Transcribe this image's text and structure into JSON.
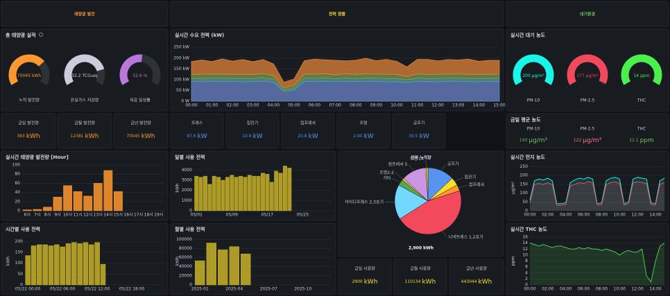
{
  "headers": [
    {
      "text": "태양광 발전",
      "color": "#ff9830"
    },
    {
      "text": "전력 현황",
      "color": "#fade2a"
    },
    {
      "text": "대기환경",
      "color": "#73bf69"
    }
  ],
  "gauge_panels": [
    {
      "title": "총 태양광 실적",
      "gauges": [
        {
          "label": "누적 발전량",
          "value": 70045,
          "unit": "kWh",
          "max": 100000,
          "color": "#ff9830"
        },
        {
          "label": "온실가스 저감량",
          "value": 32.2,
          "unit": "TCO₂eq",
          "max": 40,
          "color": "#ccccdc"
        },
        {
          "label": "목표 달성률",
          "value": 52.6,
          "unit": "%",
          "max": 100,
          "color": "#b877d9"
        }
      ]
    },
    {
      "title": "실시간 대기 농도",
      "gauges": [
        {
          "label": "PM-10",
          "value": 200,
          "unit": "μg/m³",
          "max": 200,
          "color": "#19f5e8"
        },
        {
          "label": "PM-2.5",
          "value": 177,
          "unit": "μg/m³",
          "max": 180,
          "color": "#f2495c"
        },
        {
          "label": "THC",
          "value": 14,
          "unit": "ppm",
          "max": 14,
          "color": "#4cf04c"
        }
      ]
    }
  ],
  "stats": [
    {
      "label": "금일 발전량",
      "value": "393",
      "unit": "kWh",
      "color": "#ff9830"
    },
    {
      "label": "금월 발전량",
      "value": "12381",
      "unit": "kWh",
      "color": "#ff9830"
    },
    {
      "label": "금년 발전량",
      "value": "70045",
      "unit": "kWh",
      "color": "#ff9830"
    },
    {
      "label": "프레스",
      "value": "97.6",
      "unit": "kW",
      "color": "#5794f2"
    },
    {
      "label": "집진기",
      "value": "10.9",
      "unit": "kW",
      "color": "#5794f2"
    },
    {
      "label": "컴프레셔",
      "value": "20.8",
      "unit": "kW",
      "color": "#5794f2"
    },
    {
      "label": "조명",
      "value": "2.90",
      "unit": "kW",
      "color": "#5794f2"
    },
    {
      "label": "공조기",
      "value": "30.5",
      "unit": "kW",
      "color": "#5794f2"
    },
    {
      "label": "금일 사용량",
      "value": "2900",
      "unit": "kWh",
      "color": "#fade2a"
    },
    {
      "label": "금월 사용량",
      "value": "110134",
      "unit": "kWh",
      "color": "#fade2a"
    },
    {
      "label": "금년 사용량",
      "value": "443044",
      "unit": "kWh",
      "color": "#fade2a"
    }
  ],
  "avg_panel": {
    "title": "금일 평균 농도",
    "items": [
      {
        "label": "PM-10",
        "value": "143",
        "unit": "μg/m³",
        "color": "#73bf69"
      },
      {
        "label": "PM-2.5",
        "value": "122",
        "unit": "μg/m³",
        "color": "#ff7383"
      },
      {
        "label": "THC",
        "value": "11.1",
        "unit": "ppm",
        "color": "#73bf69"
      }
    ]
  },
  "chart_data": [
    {
      "type": "bar",
      "title": "실시간 태양광 발전량 [Hour]",
      "color": "#ff9830",
      "categories": [
        "6시",
        "7시",
        "8시",
        "9시",
        "10시",
        "11시",
        "12시",
        "13시",
        "14시",
        "15시",
        "16시",
        "17시",
        "18시",
        "19시"
      ],
      "values": [
        2,
        3,
        8,
        30,
        55,
        42,
        32,
        60,
        88,
        42,
        0,
        0,
        0,
        0
      ],
      "ylim": [
        0,
        100
      ],
      "yticks": [
        0,
        20,
        40,
        60,
        80,
        100
      ],
      "grid": true
    },
    {
      "type": "area",
      "title": "실시간 수요 전력 (kW)",
      "categories": [
        "00:00",
        null,
        "01:00",
        null,
        "02:00",
        null,
        "03:00",
        null,
        "04:00",
        null,
        "05:00",
        null,
        "06:00",
        null,
        "07:00",
        null,
        "08:00",
        null,
        "09:00",
        null,
        "10:00",
        null,
        "11:00",
        null,
        "12:00",
        null,
        "13:00",
        null,
        "14:00",
        null,
        "15:00"
      ],
      "series": [
        {
          "color": "#6a84c9",
          "values": [
            92,
            90,
            93,
            91,
            92,
            90,
            91,
            93,
            88,
            45,
            52,
            91,
            92,
            93,
            90,
            92,
            91,
            92,
            93,
            90,
            91,
            87,
            92,
            91,
            90,
            93,
            92,
            91,
            90,
            92,
            91
          ]
        },
        {
          "color": "#56a0a0",
          "values": [
            14,
            15,
            14,
            15,
            14,
            15,
            14,
            15,
            13,
            8,
            9,
            15,
            14,
            15,
            14,
            15,
            14,
            15,
            14,
            15,
            14,
            12,
            15,
            14,
            15,
            14,
            15,
            14,
            15,
            14,
            15
          ]
        },
        {
          "color": "#7a9c4f",
          "values": [
            18,
            20,
            19,
            20,
            18,
            20,
            19,
            20,
            17,
            10,
            12,
            20,
            19,
            20,
            18,
            20,
            19,
            20,
            18,
            20,
            19,
            15,
            20,
            19,
            20,
            18,
            20,
            19,
            20,
            18,
            20
          ]
        },
        {
          "color": "#e0843a",
          "values": [
            60,
            66,
            58,
            70,
            62,
            68,
            59,
            65,
            55,
            25,
            30,
            62,
            70,
            64,
            68,
            60,
            66,
            72,
            63,
            69,
            61,
            45,
            67,
            70,
            62,
            68,
            64,
            71,
            60,
            66,
            63
          ]
        }
      ],
      "ylim": [
        0,
        270
      ],
      "yticks": [
        {
          "value": 0,
          "label": "0 W"
        },
        {
          "value": 50,
          "label": "50 kW"
        },
        {
          "value": 100,
          "label": "100 kW"
        },
        {
          "value": 150,
          "label": "150 kW"
        },
        {
          "value": 200,
          "label": "200 kW"
        },
        {
          "value": 250,
          "label": "250 kW"
        }
      ],
      "grid": true
    },
    {
      "type": "bar",
      "title": "시간별 사용 전력",
      "color": "#c8b12a",
      "ylabel": "kWh",
      "categories": [
        "05/22 00:00",
        null,
        null,
        null,
        null,
        null,
        "05/22 06:00",
        null,
        null,
        null,
        null,
        null,
        "05/22 12:00",
        null,
        null,
        null,
        null,
        null,
        "05/22 18:00",
        null,
        null,
        null,
        null,
        null
      ],
      "values": [
        135,
        180,
        185,
        185,
        180,
        185,
        175,
        190,
        195,
        190,
        195,
        185,
        195,
        95,
        0,
        0,
        0,
        0,
        0,
        0,
        0,
        0,
        0,
        0
      ],
      "ylim": [
        0,
        220
      ],
      "yticks": [
        0,
        50,
        100,
        150,
        200
      ],
      "grid": true
    },
    {
      "type": "bar",
      "title": "일별 사용 전력",
      "color": "#c8b12a",
      "ylabel": "kWh",
      "categories": [
        "05/01",
        null,
        null,
        null,
        null,
        null,
        null,
        null,
        "05/09",
        null,
        null,
        null,
        null,
        null,
        null,
        null,
        "05/17",
        null,
        null,
        null,
        null,
        null,
        null,
        null,
        "05/25",
        null,
        null,
        null,
        null,
        null,
        null
      ],
      "values": [
        3400,
        3300,
        3400,
        2600,
        3400,
        3300,
        3000,
        3300,
        3500,
        3300,
        3400,
        3300,
        3500,
        3400,
        3400,
        3700,
        3600,
        2800,
        3900,
        3700,
        4400,
        4200,
        0,
        0,
        0,
        0,
        0,
        0,
        0,
        0,
        0
      ],
      "ylim": [
        0,
        4500
      ],
      "yticks": [
        0,
        1000,
        2000,
        3000,
        4000
      ],
      "grid": true
    },
    {
      "type": "bar",
      "title": "월별 사용 전력",
      "color": "#c8b12a",
      "ylabel": "kWh",
      "categories": [
        "2025-01",
        null,
        null,
        "2025-04",
        null,
        null,
        "2025-07",
        null,
        null,
        "2025-10",
        null,
        null
      ],
      "values": [
        53000,
        92000,
        77000,
        84000,
        68000,
        0,
        0,
        0,
        0,
        0,
        0,
        0
      ],
      "ylim": [
        0,
        105000
      ],
      "yticks": [
        0,
        20000,
        40000,
        60000,
        80000,
        100000
      ],
      "grid": true
    },
    {
      "type": "pie",
      "title": "전력 누적량",
      "footer": "2,900 kWh",
      "categories": [
        "공조기",
        "집진기",
        "컴프레셔",
        "니넥트레스 1,2호기",
        "아이디프레스 2,3호기",
        "기타",
        "조명2-2",
        "컴프레셔 5",
        "조명 L4"
      ],
      "values": [
        13,
        4,
        3,
        46,
        17,
        3,
        1,
        12,
        1
      ],
      "colors": [
        "#5794f2",
        "#fade2a",
        "#ff9830",
        "#f2495c",
        "#73d8ff",
        "#56a64b",
        "#ffb357",
        "#ca95e5",
        "#f2cc0c"
      ]
    },
    {
      "type": "line",
      "title": "실시간 먼지 농도",
      "ylabel": "μg/m³",
      "categories": [
        "00:00",
        null,
        null,
        null,
        "02:00",
        null,
        null,
        null,
        "04:00",
        null,
        null,
        null,
        "06:00",
        null,
        null,
        null,
        "08:00",
        null,
        null,
        null,
        "10:00",
        null,
        null,
        null,
        "12:00",
        null,
        null,
        null,
        "14:00",
        null,
        null
      ],
      "series": [
        {
          "color": "#19f5e8",
          "values": [
            60,
            170,
            180,
            175,
            185,
            170,
            40,
            40,
            45,
            160,
            175,
            185,
            180,
            190,
            180,
            40,
            45,
            170,
            185,
            190,
            180,
            40,
            50,
            180,
            190,
            185,
            180,
            45,
            40,
            170,
            185
          ]
        },
        {
          "color": "#f2495c",
          "values": [
            45,
            150,
            155,
            150,
            160,
            148,
            30,
            32,
            35,
            140,
            150,
            160,
            155,
            165,
            158,
            32,
            35,
            148,
            160,
            165,
            155,
            32,
            40,
            158,
            165,
            160,
            155,
            35,
            32,
            150,
            160
          ]
        }
      ],
      "ylim": [
        0,
        260
      ],
      "yticks": [
        0,
        50,
        100,
        150,
        200,
        250
      ],
      "grid": true
    },
    {
      "type": "line",
      "title": "실시간 THC 농도",
      "ylabel": "ppm",
      "categories": [
        "00:00",
        null,
        null,
        null,
        "02:00",
        null,
        null,
        null,
        "04:00",
        null,
        null,
        null,
        "06:00",
        null,
        null,
        null,
        "08:00",
        null,
        null,
        null,
        "10:00",
        null,
        null,
        null,
        "12:00",
        null,
        null,
        null,
        "14:00",
        null,
        null
      ],
      "series": [
        {
          "color": "#4cd04c",
          "values": [
            14,
            13.5,
            13,
            13.5,
            13,
            12.5,
            13,
            13,
            12.5,
            12,
            12,
            12.5,
            12,
            12.5,
            12,
            12,
            11.5,
            12,
            11.5,
            11,
            10,
            11,
            11.5,
            11,
            11,
            12,
            3,
            1,
            8,
            13,
            14
          ]
        }
      ],
      "ylim": [
        0,
        16
      ],
      "yticks": [
        0,
        2,
        4,
        6,
        8,
        10,
        12,
        14,
        16
      ],
      "grid": true
    }
  ]
}
